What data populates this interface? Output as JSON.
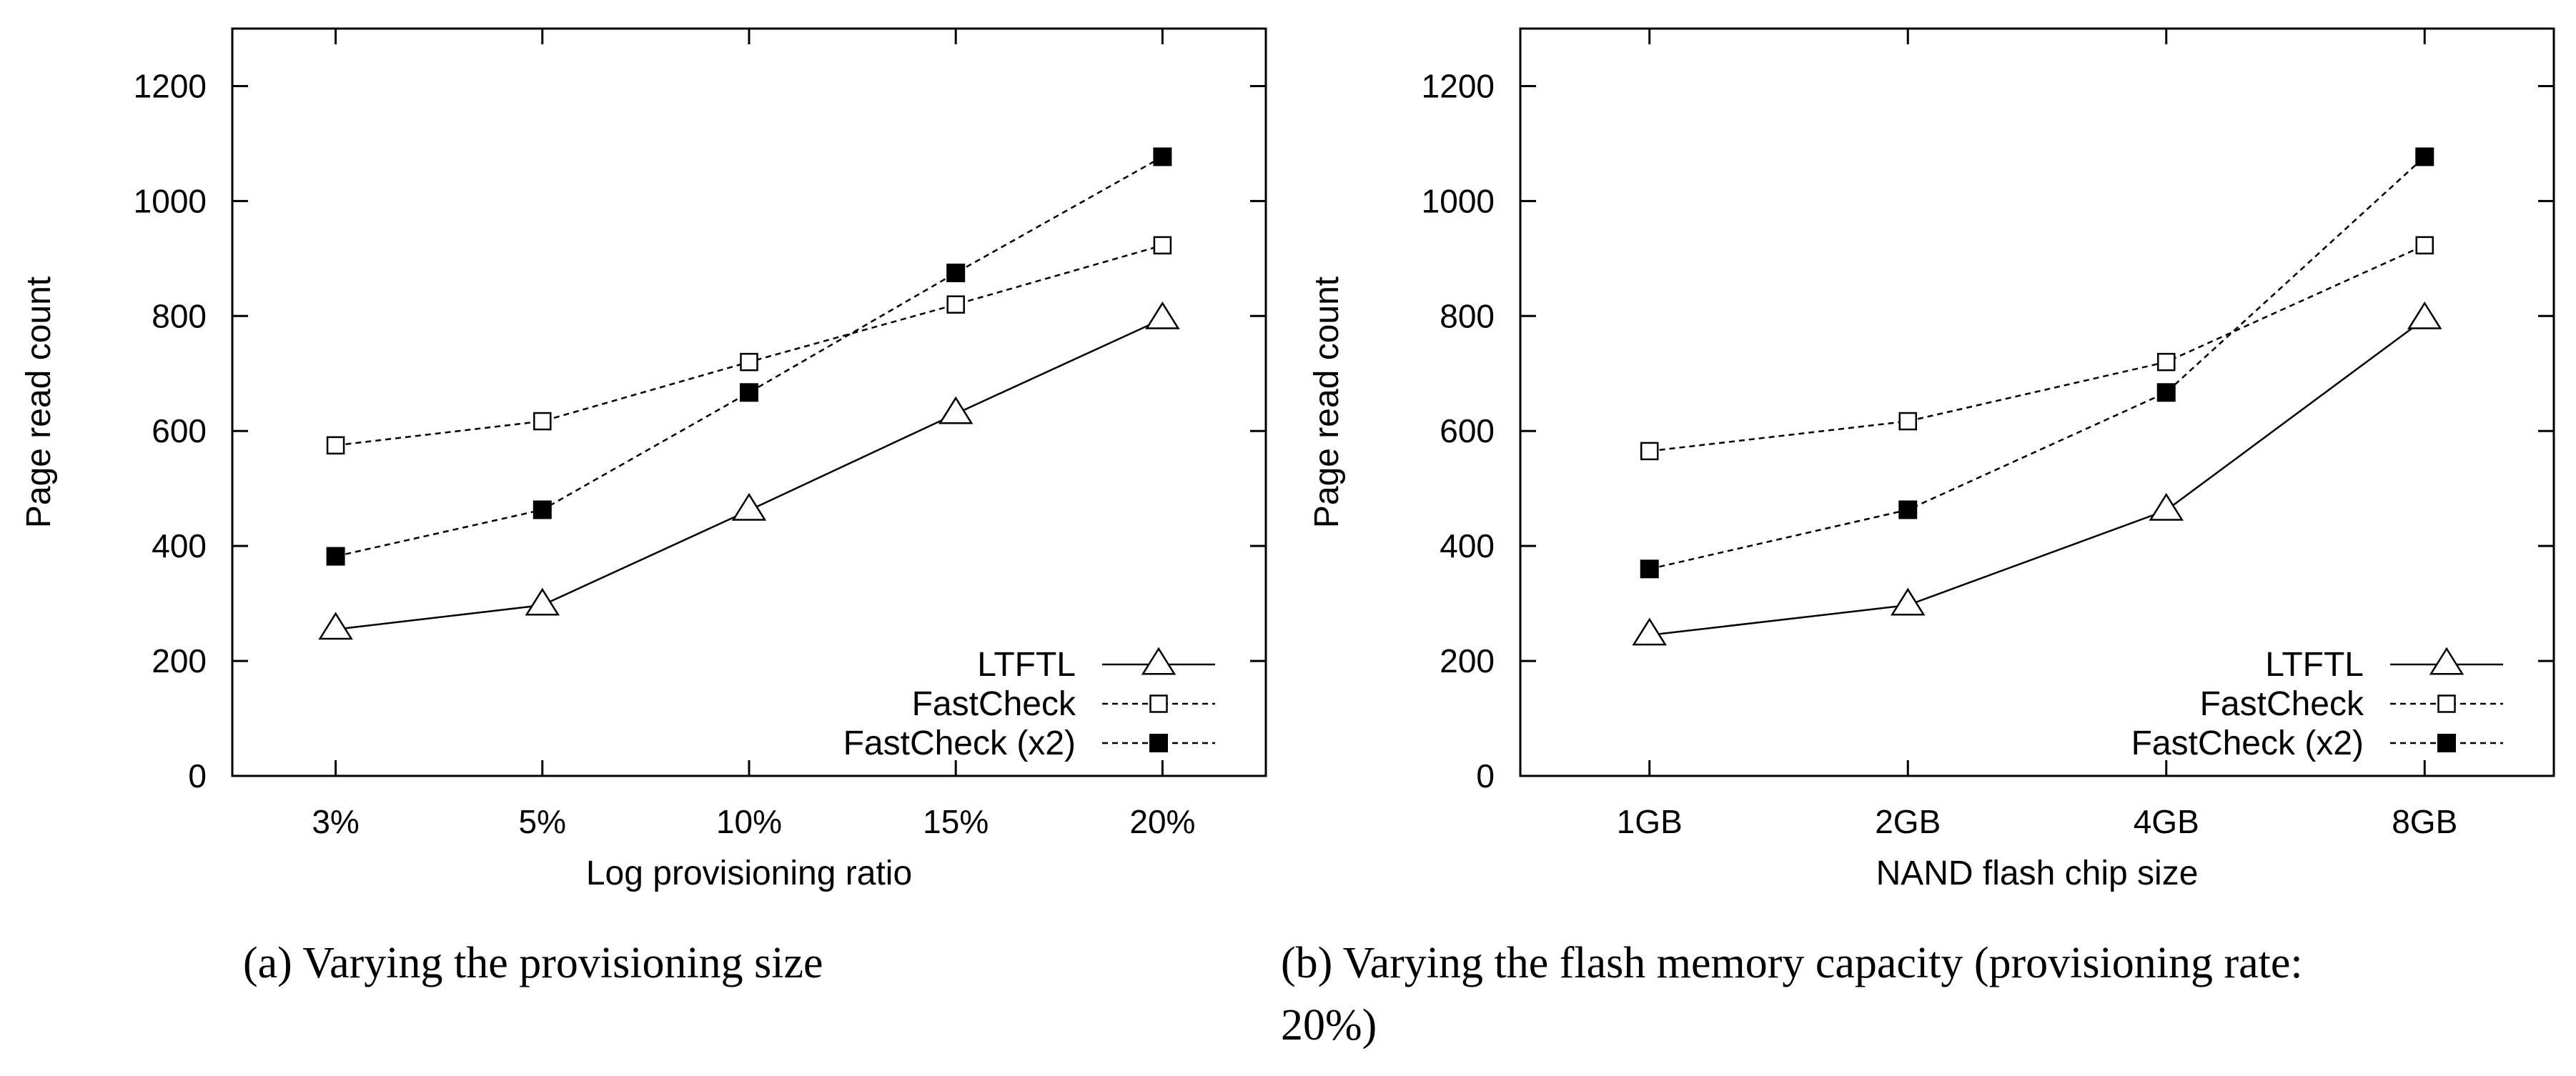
{
  "charts": {
    "a": {
      "caption_text": "(a) Varying the provisioning size"
    },
    "b": {
      "caption_text": "(b) Varying the flash memory capacity (provisioning rate:",
      "caption_text_line2": "20%)"
    }
  },
  "chart_data": [
    {
      "type": "line",
      "title": "",
      "caption": "(a) Varying the provisioning size",
      "xlabel": "Log provisioning ratio",
      "ylabel": "Page read count",
      "categories": [
        "3%",
        "5%",
        "10%",
        "15%",
        "20%"
      ],
      "ylim": [
        0,
        1300
      ],
      "yticks": [
        0,
        200,
        400,
        600,
        800,
        1000,
        1200
      ],
      "grid": false,
      "legend_position": "bottom-right",
      "series": [
        {
          "name": "LTFTL",
          "marker": "triangle-open",
          "line": "solid",
          "values": [
            255,
            297,
            462,
            630,
            795
          ]
        },
        {
          "name": "FastCheck",
          "marker": "square-open",
          "line": "dashed",
          "values": [
            575,
            617,
            720,
            820,
            923
          ]
        },
        {
          "name": "FastCheck (x2)",
          "marker": "square-filled",
          "line": "dashed",
          "values": [
            382,
            463,
            667,
            875,
            1077
          ]
        }
      ]
    },
    {
      "type": "line",
      "title": "",
      "caption": "(b) Varying the flash memory capacity (provisioning rate: 20%)",
      "xlabel": "NAND flash chip size",
      "ylabel": "Page read count",
      "categories": [
        "1GB",
        "2GB",
        "4GB",
        "8GB"
      ],
      "ylim": [
        0,
        1300
      ],
      "yticks": [
        0,
        200,
        400,
        600,
        800,
        1000,
        1200
      ],
      "grid": false,
      "legend_position": "bottom-right",
      "series": [
        {
          "name": "LTFTL",
          "marker": "triangle-open",
          "line": "solid",
          "values": [
            245,
            297,
            462,
            795
          ]
        },
        {
          "name": "FastCheck",
          "marker": "square-open",
          "line": "dashed",
          "values": [
            565,
            617,
            720,
            923
          ]
        },
        {
          "name": "FastCheck (x2)",
          "marker": "square-filled",
          "line": "dashed",
          "values": [
            360,
            463,
            667,
            1077
          ]
        }
      ]
    }
  ]
}
